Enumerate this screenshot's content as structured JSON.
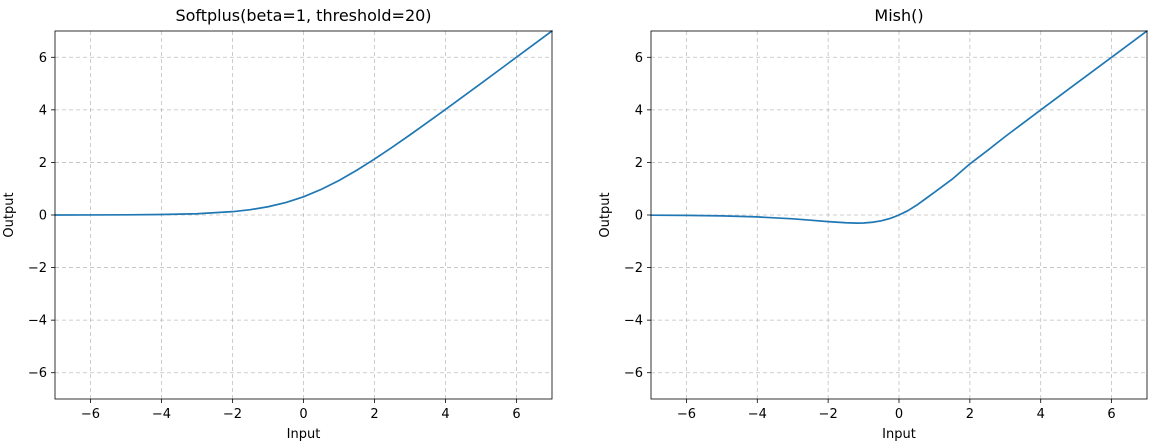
{
  "chart_data": [
    {
      "type": "line",
      "title": "Softplus(beta=1, threshold=20)",
      "xlabel": "Input",
      "ylabel": "Output",
      "xlim": [
        -7,
        7
      ],
      "ylim": [
        -7,
        7
      ],
      "xticks": [
        -6,
        -4,
        -2,
        0,
        2,
        4,
        6
      ],
      "yticks": [
        -6,
        -4,
        -2,
        0,
        2,
        4,
        6
      ],
      "xtick_labels": [
        "−6",
        "−4",
        "−2",
        "0",
        "2",
        "4",
        "6"
      ],
      "ytick_labels": [
        "−6",
        "−4",
        "−2",
        "0",
        "2",
        "4",
        "6"
      ],
      "grid": true,
      "series": [
        {
          "color": "#1f77b4",
          "x": [
            -7,
            -6,
            -5,
            -4,
            -3,
            -2,
            -1.5,
            -1,
            -0.5,
            0,
            0.5,
            1,
            1.5,
            2,
            2.5,
            3,
            3.5,
            4,
            5,
            6,
            7
          ],
          "y": [
            0.0009,
            0.0025,
            0.0067,
            0.0181,
            0.0486,
            0.1269,
            0.2014,
            0.3133,
            0.4741,
            0.6931,
            0.9741,
            1.3133,
            1.7014,
            2.1269,
            2.5789,
            3.0486,
            3.5297,
            4.0181,
            5.0067,
            6.0025,
            7.0009
          ]
        }
      ]
    },
    {
      "type": "line",
      "title": "Mish()",
      "xlabel": "Input",
      "ylabel": "Output",
      "xlim": [
        -7,
        7
      ],
      "ylim": [
        -7,
        7
      ],
      "xticks": [
        -6,
        -4,
        -2,
        0,
        2,
        4,
        6
      ],
      "yticks": [
        -6,
        -4,
        -2,
        0,
        2,
        4,
        6
      ],
      "xtick_labels": [
        "−6",
        "−4",
        "−2",
        "0",
        "2",
        "4",
        "6"
      ],
      "ytick_labels": [
        "−6",
        "−4",
        "−2",
        "0",
        "2",
        "4",
        "6"
      ],
      "grid": true,
      "series": [
        {
          "color": "#1f77b4",
          "x": [
            -7,
            -6,
            -5,
            -4,
            -3,
            -2.5,
            -2,
            -1.5,
            -1.2,
            -1,
            -0.75,
            -0.5,
            -0.25,
            0,
            0.25,
            0.5,
            0.75,
            1,
            1.5,
            2,
            2.5,
            3,
            4,
            5,
            6,
            7
          ],
          "y": [
            -0.0064,
            -0.0149,
            -0.0336,
            -0.0726,
            -0.1456,
            -0.1968,
            -0.2525,
            -0.2951,
            -0.3088,
            -0.3034,
            -0.2751,
            -0.2219,
            -0.1306,
            0,
            0.1642,
            0.3752,
            0.6183,
            0.8651,
            1.3611,
            1.944,
            2.4554,
            2.9865,
            3.9974,
            4.9996,
            5.9999,
            7.0
          ]
        }
      ]
    }
  ]
}
